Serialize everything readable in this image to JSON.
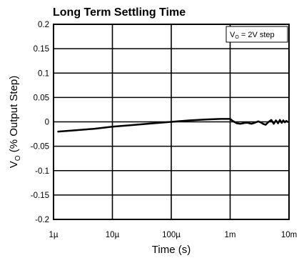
{
  "chart_data": {
    "type": "line",
    "title": "Long Term Settling Time",
    "xlabel": "Time (s)",
    "ylabel_main": "V",
    "ylabel_sub": "O",
    "ylabel_rest": " (% Output Step)",
    "x_scale": "log",
    "xlim": [
      1e-06,
      0.01
    ],
    "ylim": [
      -0.2,
      0.2
    ],
    "grid": true,
    "x_ticks": [
      {
        "value": 1e-06,
        "label": "1µ"
      },
      {
        "value": 1e-05,
        "label": "10µ"
      },
      {
        "value": 0.0001,
        "label": "100µ"
      },
      {
        "value": 0.001,
        "label": "1m"
      },
      {
        "value": 0.01,
        "label": "10m"
      }
    ],
    "y_ticks": [
      {
        "value": 0.2,
        "label": "0.2"
      },
      {
        "value": 0.15,
        "label": "0.15"
      },
      {
        "value": 0.1,
        "label": "0.1"
      },
      {
        "value": 0.05,
        "label": "0.05"
      },
      {
        "value": 0,
        "label": "0"
      },
      {
        "value": -0.05,
        "label": "-0.05"
      },
      {
        "value": -0.1,
        "label": "-0.1"
      },
      {
        "value": -0.15,
        "label": "-0.15"
      },
      {
        "value": -0.2,
        "label": "-0.2"
      }
    ],
    "annotation": {
      "main": "V",
      "sub": "O",
      "rest": " = 2V step",
      "placement": "top-right"
    },
    "series": [
      {
        "x": [
          1.2e-06,
          2e-06,
          5e-06,
          1e-05,
          2e-05,
          5e-05,
          0.0001,
          0.0002,
          0.0004,
          0.0007,
          0.001,
          0.0011,
          0.0013,
          0.0015,
          0.0018,
          0.002,
          0.0023,
          0.0026,
          0.003,
          0.0033,
          0.0036,
          0.004,
          0.0045,
          0.005,
          0.0055,
          0.006,
          0.0065,
          0.007,
          0.0075,
          0.008,
          0.0085,
          0.009,
          0.0095
        ],
        "y": [
          -0.02,
          -0.018,
          -0.014,
          -0.01,
          -0.007,
          -0.003,
          0.0,
          0.003,
          0.005,
          0.006,
          0.006,
          0.002,
          -0.003,
          -0.004,
          -0.002,
          -0.002,
          -0.004,
          -0.002,
          0.001,
          -0.001,
          -0.004,
          -0.006,
          0.0,
          0.004,
          -0.004,
          0.003,
          -0.003,
          0.004,
          -0.002,
          0.003,
          -0.001,
          0.002,
          0.0
        ]
      }
    ]
  }
}
